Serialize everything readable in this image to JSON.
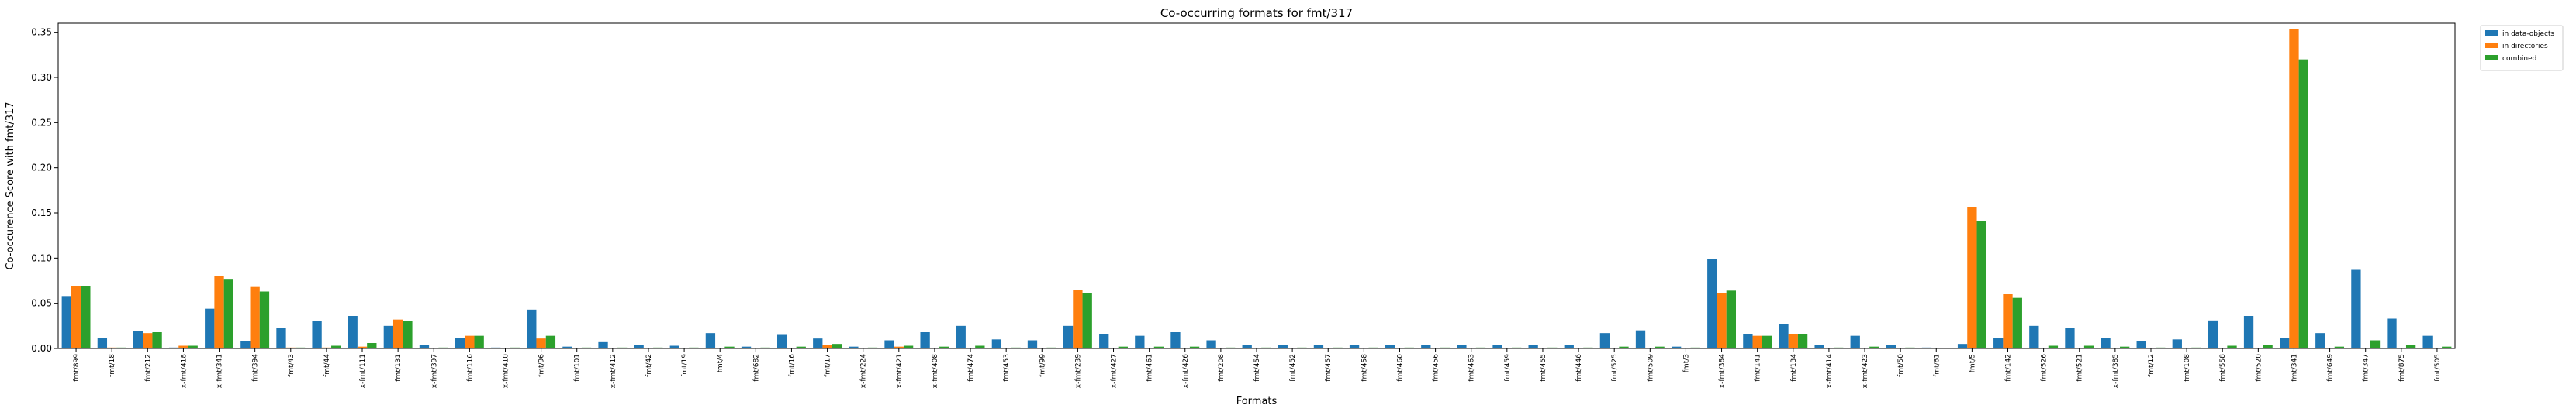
{
  "chart_data": {
    "type": "bar",
    "title": "Co-occurring formats for fmt/317",
    "xlabel": "Formats",
    "ylabel": "Co-occurence Score with fmt/317",
    "ylim": [
      0,
      0.36
    ],
    "yticks": [
      "0.00",
      "0.05",
      "0.10",
      "0.15",
      "0.20",
      "0.25",
      "0.30",
      "0.35"
    ],
    "ytick_values": [
      0,
      0.05,
      0.1,
      0.15,
      0.2,
      0.25,
      0.3,
      0.35
    ],
    "grid": false,
    "legend_position": "top-right, outside",
    "categories": [
      "fmt/899",
      "fmt/18",
      "fmt/212",
      "x-fmt/418",
      "x-fmt/341",
      "fmt/394",
      "fmt/43",
      "fmt/44",
      "x-fmt/111",
      "fmt/131",
      "x-fmt/397",
      "fmt/116",
      "x-fmt/410",
      "fmt/96",
      "fmt/101",
      "x-fmt/412",
      "fmt/42",
      "fmt/19",
      "fmt/4",
      "fmt/682",
      "fmt/16",
      "fmt/17",
      "x-fmt/224",
      "x-fmt/421",
      "x-fmt/408",
      "fmt/474",
      "fmt/453",
      "fmt/99",
      "x-fmt/239",
      "x-fmt/427",
      "fmt/461",
      "x-fmt/426",
      "fmt/208",
      "fmt/454",
      "fmt/452",
      "fmt/457",
      "fmt/458",
      "fmt/460",
      "fmt/456",
      "fmt/463",
      "fmt/459",
      "fmt/455",
      "fmt/446",
      "fmt/525",
      "fmt/509",
      "fmt/3",
      "x-fmt/384",
      "fmt/141",
      "fmt/134",
      "x-fmt/414",
      "x-fmt/423",
      "fmt/50",
      "fmt/61",
      "fmt/5",
      "fmt/142",
      "fmt/526",
      "fmt/521",
      "x-fmt/385",
      "fmt/12",
      "fmt/108",
      "fmt/558",
      "fmt/520",
      "fmt/341",
      "fmt/649",
      "fmt/347",
      "fmt/875",
      "fmt/505"
    ],
    "series": [
      {
        "name": "in data-objects",
        "color": "#1f77b4",
        "values": [
          0.058,
          0.012,
          0.019,
          0.001,
          0.044,
          0.008,
          0.023,
          0.03,
          0.036,
          0.025,
          0.004,
          0.012,
          0.001,
          0.043,
          0.002,
          0.007,
          0.004,
          0.003,
          0.017,
          0.002,
          0.015,
          0.011,
          0.002,
          0.009,
          0.018,
          0.025,
          0.01,
          0.009,
          0.025,
          0.016,
          0.014,
          0.018,
          0.009,
          0.004,
          0.004,
          0.004,
          0.004,
          0.004,
          0.004,
          0.004,
          0.004,
          0.004,
          0.004,
          0.017,
          0.02,
          0.002,
          0.099,
          0.016,
          0.027,
          0.004,
          0.014,
          0.004,
          0.001,
          0.005,
          0.012,
          0.025,
          0.023,
          0.012,
          0.008,
          0.01,
          0.031,
          0.036,
          0.012,
          0.017,
          0.087,
          0.033,
          0.014
        ]
      },
      {
        "name": "in directories",
        "color": "#ff7f0e",
        "values": [
          0.069,
          0.001,
          0.017,
          0.003,
          0.08,
          0.068,
          0.001,
          0.001,
          0.002,
          0.032,
          0.0,
          0.014,
          0.0,
          0.011,
          0.0,
          0.0,
          0.0,
          0.0,
          0.0,
          0.0,
          0.0,
          0.004,
          0.0,
          0.002,
          0.0,
          0.0,
          0.0,
          0.0,
          0.065,
          0.0,
          0.0,
          0.0,
          0.0,
          0.0,
          0.0,
          0.0,
          0.0,
          0.0,
          0.0,
          0.0,
          0.0,
          0.0,
          0.0,
          0.0,
          0.0,
          0.0,
          0.061,
          0.014,
          0.016,
          0.0,
          0.0,
          0.0,
          0.0,
          0.156,
          0.06,
          0.0,
          0.0,
          0.0,
          0.0,
          0.0,
          0.0,
          0.0,
          0.354,
          0.0,
          0.0,
          0.0,
          0.0
        ]
      },
      {
        "name": "combined",
        "color": "#2ca02c",
        "values": [
          0.069,
          0.001,
          0.018,
          0.003,
          0.077,
          0.063,
          0.001,
          0.003,
          0.006,
          0.03,
          0.001,
          0.014,
          0.001,
          0.014,
          0.001,
          0.001,
          0.001,
          0.001,
          0.002,
          0.001,
          0.002,
          0.005,
          0.001,
          0.003,
          0.002,
          0.003,
          0.001,
          0.001,
          0.061,
          0.002,
          0.002,
          0.002,
          0.001,
          0.001,
          0.001,
          0.001,
          0.001,
          0.001,
          0.001,
          0.001,
          0.001,
          0.001,
          0.001,
          0.002,
          0.002,
          0.001,
          0.064,
          0.014,
          0.016,
          0.001,
          0.002,
          0.001,
          0.0,
          0.141,
          0.056,
          0.003,
          0.003,
          0.002,
          0.001,
          0.001,
          0.003,
          0.004,
          0.32,
          0.002,
          0.009,
          0.004,
          0.002
        ]
      }
    ]
  }
}
